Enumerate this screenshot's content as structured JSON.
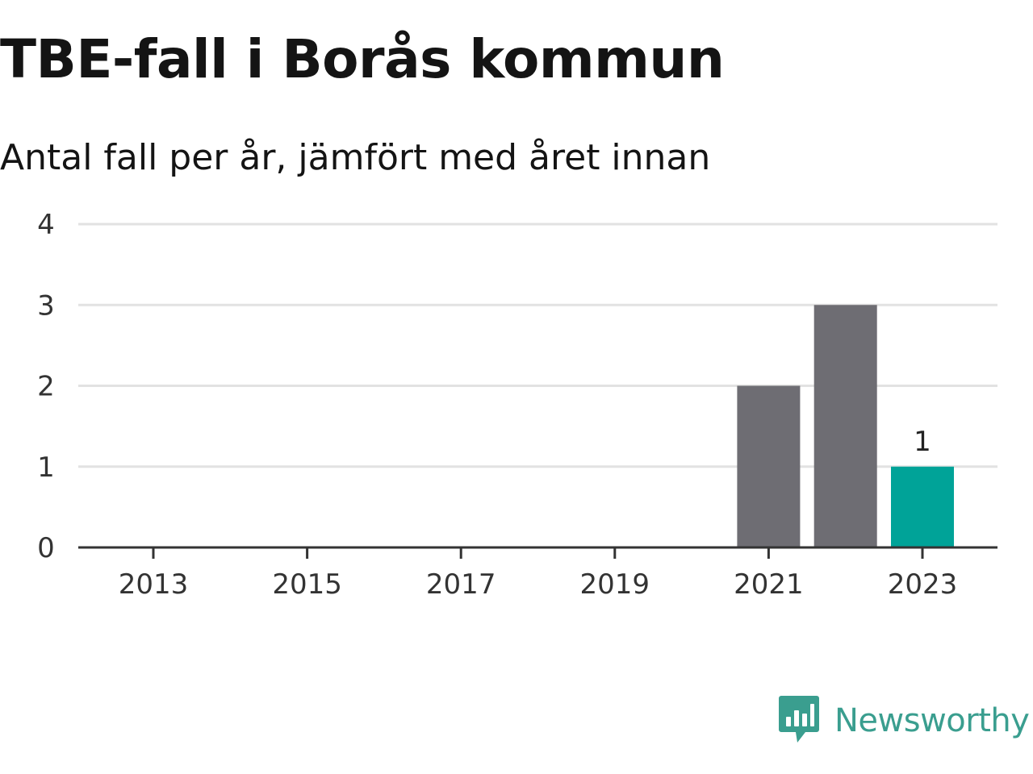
{
  "header": {
    "title": "TBE-fall i Borås kommun",
    "subtitle": "Antal fall per år, jämfört med året innan"
  },
  "branding": {
    "name": "Newsworthy",
    "logo_icon": "newsworthy-bar-chart-speech-bubble-icon",
    "color": "#3a9e8f"
  },
  "chart_data": {
    "type": "bar",
    "categories": [
      "2013",
      "2014",
      "2015",
      "2016",
      "2017",
      "2018",
      "2019",
      "2020",
      "2021",
      "2022",
      "2023"
    ],
    "values": [
      0,
      0,
      0,
      0,
      0,
      0,
      0,
      0,
      2,
      3,
      1
    ],
    "x_tick_labels": [
      "2013",
      "2015",
      "2017",
      "2019",
      "2021",
      "2023"
    ],
    "y_ticks": [
      0,
      1,
      2,
      3,
      4
    ],
    "ylim": [
      0,
      4
    ],
    "grid": true,
    "highlight": {
      "category": "2023",
      "color": "#00a398",
      "label": "1"
    },
    "bar_color": "#6e6d73",
    "grid_color": "#e2e2e2",
    "axis_color": "#333333"
  }
}
